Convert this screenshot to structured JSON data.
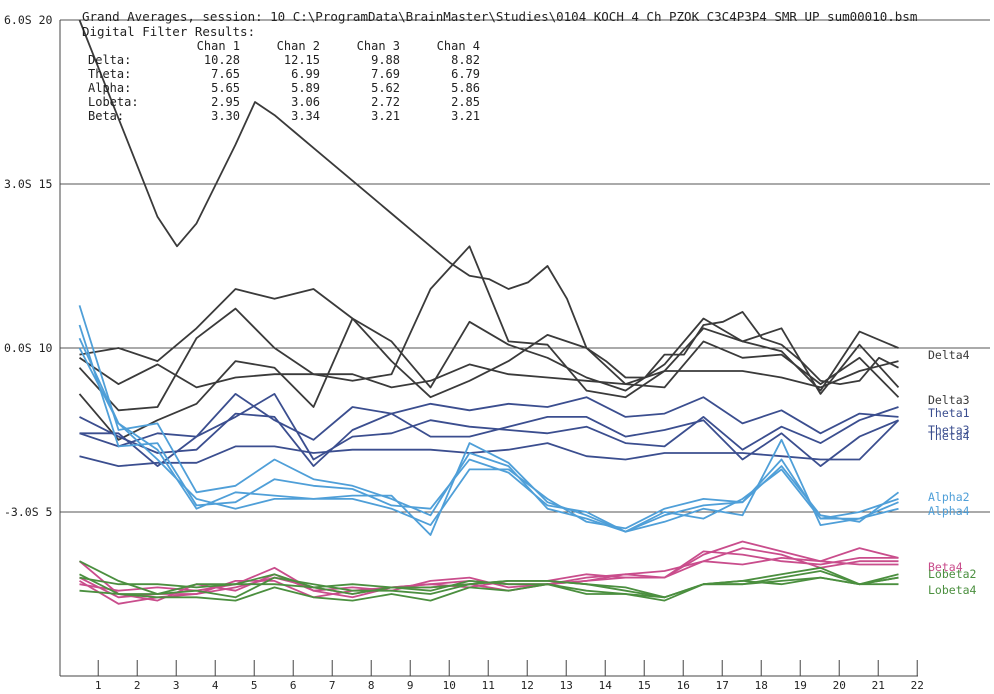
{
  "header": {
    "title": "Grand Averages, session: 10 C:\\ProgramData\\BrainMaster\\Studies\\0104 KOCH 4 Ch PZOK C3C4P3P4 SMR UP sum00010.bsm",
    "subtitle": "Digital Filter Results:"
  },
  "chart_data": {
    "type": "line",
    "title": "Grand Averages, session: 10 C:\\ProgramData\\BrainMaster\\Studies\\0104 KOCH 4 Ch PZOK C3C4P3P4 SMR UP sum00010.bsm",
    "subtitle": "Digital Filter Results:",
    "xlabel": "",
    "ylabel": "",
    "ylim": [
      0,
      20
    ],
    "xlim": [
      0,
      22
    ],
    "grid": true,
    "y_ticks": [
      {
        "value": 20,
        "label": "6.0S 20"
      },
      {
        "value": 15,
        "label": "3.0S 15"
      },
      {
        "value": 10,
        "label": "0.0S 10"
      },
      {
        "value": 5,
        "label": "-3.0S 5"
      }
    ],
    "x_ticks": [
      "1",
      "2",
      "3",
      "4",
      "5",
      "6",
      "7",
      "8",
      "9",
      "10",
      "11",
      "12",
      "13",
      "14",
      "15",
      "16",
      "17",
      "18",
      "19",
      "20",
      "21",
      "22"
    ],
    "summary_table": {
      "columns": [
        "",
        "Chan 1",
        "Chan 2",
        "Chan 3",
        "Chan 4"
      ],
      "rows": [
        [
          "Delta:",
          "10.28",
          "12.15",
          "9.88",
          "8.82"
        ],
        [
          "Theta:",
          "7.65",
          "6.99",
          "7.69",
          "6.79"
        ],
        [
          "Alpha:",
          "5.65",
          "5.89",
          "5.62",
          "5.86"
        ],
        [
          "Lobeta:",
          "2.95",
          "3.06",
          "2.72",
          "2.85"
        ],
        [
          "Beta:",
          "3.30",
          "3.34",
          "3.21",
          "3.21"
        ]
      ]
    },
    "series": [
      {
        "group": "Delta",
        "label": "",
        "color": "#3a3a3a",
        "x": [
          0.5,
          1,
          1.5,
          2,
          2.5,
          3,
          3.5,
          4,
          4.5,
          5,
          5.5,
          6,
          6.5,
          7,
          7.5,
          8,
          8.5,
          9,
          9.5,
          10,
          10.5,
          11,
          11.5,
          12,
          12.5,
          13,
          13.5,
          14,
          14.5,
          15,
          15.5,
          16,
          16.5,
          17,
          17.5,
          18,
          18.5,
          19,
          19.5,
          20,
          20.5,
          21,
          21.5
        ],
        "values": [
          20,
          18.5,
          17,
          15.5,
          14,
          13.1,
          13.8,
          15,
          16.2,
          17.5,
          17.1,
          16.6,
          16.1,
          15.6,
          15.1,
          14.6,
          14.1,
          13.6,
          13.1,
          12.6,
          12.2,
          12.1,
          11.8,
          12,
          12.5,
          11.5,
          10,
          9.6,
          9.1,
          9.1,
          9.8,
          9.8,
          10.7,
          10.8,
          11.1,
          10.3,
          10.1,
          9.6,
          9.0,
          8.9,
          9.0,
          9.7,
          9.4
        ]
      },
      {
        "group": "Delta",
        "label": "",
        "color": "#3a3a3a",
        "x": [
          0.5,
          1.5,
          2.5,
          3.5,
          4.5,
          5.5,
          6.5,
          7.5,
          8.5,
          9.5,
          10.5,
          11.5,
          12.5,
          13.5,
          14.5,
          15.5,
          16.5,
          17.5,
          18.5,
          19.5,
          20.5,
          21.5
        ],
        "values": [
          9.8,
          10.0,
          9.6,
          10.6,
          11.8,
          11.5,
          11.8,
          10.9,
          10.2,
          8.8,
          10.8,
          10.1,
          9.7,
          9.1,
          8.7,
          9.5,
          10.9,
          10.2,
          10.6,
          8.6,
          10.1,
          8.8
        ]
      },
      {
        "group": "Delta",
        "label": "Delta4",
        "color": "#3a3a3a",
        "x": [
          0.5,
          1.5,
          2.5,
          3.5,
          4.5,
          5.5,
          6.5,
          7.5,
          8.5,
          9.5,
          10.5,
          11.5,
          12.5,
          13.5,
          14.5,
          15.5,
          16.5,
          17.5,
          18.5,
          19.5,
          20.5,
          21.5
        ],
        "values": [
          9.4,
          8.1,
          8.2,
          10.3,
          11.2,
          10.0,
          9.2,
          9.0,
          9.2,
          11.8,
          13.1,
          10.2,
          10.1,
          8.7,
          8.5,
          9.3,
          10.6,
          10.2,
          9.9,
          8.7,
          10.5,
          10.0
        ]
      },
      {
        "group": "Delta",
        "label": "Delta3",
        "color": "#3a3a3a",
        "x": [
          0.5,
          1.5,
          2.5,
          3.5,
          4.5,
          5.5,
          6.5,
          7.5,
          8.5,
          9.5,
          10.5,
          11.5,
          12.5,
          13.5,
          14.5,
          15.5,
          16.5,
          17.5,
          18.5,
          19.5,
          20.5,
          21.5
        ],
        "values": [
          8.6,
          7.2,
          7.8,
          8.3,
          9.6,
          9.4,
          8.2,
          10.9,
          9.6,
          8.5,
          9.0,
          9.6,
          10.4,
          10.0,
          8.9,
          8.8,
          10.2,
          9.7,
          9.8,
          8.9,
          9.7,
          8.5
        ]
      },
      {
        "group": "Delta",
        "label": "",
        "color": "#3a3a3a",
        "x": [
          0.5,
          1.5,
          2.5,
          3.5,
          4.5,
          5.5,
          6.5,
          7.5,
          8.5,
          9.5,
          10.5,
          11.5,
          12.5,
          13.5,
          14.5,
          15.5,
          16.5,
          17.5,
          18.5,
          19.5,
          20.5,
          21.5
        ],
        "values": [
          9.7,
          8.9,
          9.5,
          8.8,
          9.1,
          9.2,
          9.2,
          9.2,
          8.8,
          9.0,
          9.5,
          9.2,
          9.1,
          9.0,
          8.9,
          9.3,
          9.3,
          9.3,
          9.1,
          8.8,
          9.3,
          9.6
        ]
      },
      {
        "group": "Theta",
        "label": "Theta1",
        "color": "#3b4e8f",
        "x": [
          0.5,
          1.5,
          2.5,
          3.5,
          4.5,
          5.5,
          6.5,
          7.5,
          8.5,
          9.5,
          10.5,
          11.5,
          12.5,
          13.5,
          14.5,
          15.5,
          16.5,
          17.5,
          18.5,
          19.5,
          20.5,
          21.5
        ],
        "values": [
          7.4,
          7.4,
          6.4,
          7.3,
          8.6,
          7.8,
          7.2,
          8.2,
          8.0,
          8.3,
          8.1,
          8.3,
          8.2,
          8.5,
          7.9,
          8.0,
          8.5,
          7.7,
          8.1,
          7.4,
          8.0,
          7.9
        ]
      },
      {
        "group": "Theta",
        "label": "",
        "color": "#3b4e8f",
        "x": [
          0.5,
          1.5,
          2.5,
          3.5,
          4.5,
          5.5,
          6.5,
          7.5,
          8.5,
          9.5,
          10.5,
          11.5,
          12.5,
          13.5,
          14.5,
          15.5,
          16.5,
          17.5,
          18.5,
          19.5,
          20.5,
          21.5
        ],
        "values": [
          7.4,
          7.0,
          7.4,
          7.3,
          7.9,
          8.6,
          6.6,
          7.3,
          7.4,
          7.8,
          7.6,
          7.5,
          7.4,
          7.6,
          7.1,
          7.0,
          7.9,
          6.9,
          7.6,
          7.1,
          7.8,
          8.2
        ]
      },
      {
        "group": "Theta",
        "label": "Theta3",
        "color": "#3b4e8f",
        "x": [
          0.5,
          1.5,
          2.5,
          3.5,
          4.5,
          5.5,
          6.5,
          7.5,
          8.5,
          9.5,
          10.5,
          11.5,
          12.5,
          13.5,
          14.5,
          15.5,
          16.5,
          17.5,
          18.5,
          19.5,
          20.5,
          21.5
        ],
        "values": [
          7.9,
          7.3,
          6.8,
          6.9,
          8.0,
          7.9,
          6.4,
          7.5,
          8.0,
          7.3,
          7.3,
          7.6,
          7.9,
          7.9,
          7.3,
          7.5,
          7.8,
          6.6,
          7.4,
          6.4,
          7.3,
          7.8
        ]
      },
      {
        "group": "Theta",
        "label": "Theta4",
        "color": "#3b4e8f",
        "x": [
          0.5,
          1.5,
          2.5,
          3.5,
          4.5,
          5.5,
          6.5,
          7.5,
          8.5,
          9.5,
          10.5,
          11.5,
          12.5,
          13.5,
          14.5,
          15.5,
          16.5,
          17.5,
          18.5,
          19.5,
          20.5,
          21.5
        ],
        "values": [
          6.7,
          6.4,
          6.5,
          6.5,
          7.0,
          7.0,
          6.8,
          6.9,
          6.9,
          6.9,
          6.8,
          6.9,
          7.1,
          6.7,
          6.6,
          6.8,
          6.8,
          6.8,
          6.7,
          6.6,
          6.6,
          7.8
        ]
      },
      {
        "group": "Alpha",
        "label": "",
        "color": "#4f9fd8",
        "x": [
          0.5,
          1.5,
          2.5,
          3.5,
          4.5,
          5.5,
          6.5,
          7.5,
          8.5,
          9.5,
          10.5,
          11.5,
          12.5,
          13.5,
          14.5,
          15.5,
          16.5,
          17.5,
          18.5,
          19.5,
          20.5,
          21.5
        ],
        "values": [
          11.3,
          7.5,
          7.7,
          5.6,
          5.8,
          6.6,
          6.0,
          5.8,
          5.4,
          4.9,
          6.8,
          6.4,
          5.1,
          4.8,
          4.4,
          4.7,
          5.1,
          4.9,
          7.2,
          4.6,
          4.8,
          5.1
        ]
      },
      {
        "group": "Alpha",
        "label": "Alpha2",
        "color": "#4f9fd8",
        "x": [
          0.5,
          1.5,
          2.5,
          3.5,
          4.5,
          5.5,
          6.5,
          7.5,
          8.5,
          9.5,
          10.5,
          11.5,
          12.5,
          13.5,
          14.5,
          15.5,
          16.5,
          17.5,
          18.5,
          19.5,
          20.5,
          21.5
        ],
        "values": [
          10.7,
          7.0,
          7.1,
          5.2,
          5.3,
          6.0,
          5.8,
          5.7,
          5.2,
          5.1,
          6.6,
          6.2,
          5.2,
          5.0,
          4.4,
          4.9,
          5.2,
          5.3,
          6.4,
          4.9,
          4.7,
          5.6
        ]
      },
      {
        "group": "Alpha",
        "label": "Alpha4",
        "color": "#4f9fd8",
        "x": [
          0.5,
          1.5,
          2.5,
          3.5,
          4.5,
          5.5,
          6.5,
          7.5,
          8.5,
          9.5,
          10.5,
          11.5,
          12.5,
          13.5,
          14.5,
          15.5,
          16.5,
          17.5,
          18.5,
          19.5,
          20.5,
          21.5
        ],
        "values": [
          10.0,
          7.7,
          6.6,
          5.4,
          5.1,
          5.4,
          5.4,
          5.4,
          5.1,
          4.6,
          6.3,
          6.3,
          5.4,
          4.7,
          4.5,
          5.1,
          5.4,
          5.3,
          6.6,
          4.8,
          4.8,
          5.3
        ]
      },
      {
        "group": "Alpha",
        "label": "",
        "color": "#4f9fd8",
        "x": [
          0.5,
          1.5,
          2.5,
          3.5,
          4.5,
          5.5,
          6.5,
          7.5,
          8.5,
          9.5,
          10.5,
          11.5,
          12.5,
          13.5,
          14.5,
          15.5,
          16.5,
          17.5,
          18.5,
          19.5,
          20.5,
          21.5
        ],
        "values": [
          10.3,
          7.7,
          6.9,
          5.1,
          5.6,
          5.5,
          5.4,
          5.5,
          5.5,
          4.3,
          7.1,
          6.5,
          5.3,
          4.9,
          4.4,
          5.0,
          4.8,
          5.4,
          6.3,
          4.8,
          5.0,
          5.4
        ]
      },
      {
        "group": "Beta",
        "label": "Beta4",
        "color": "#c94d8c",
        "x": [
          0.5,
          1.5,
          2.5,
          3.5,
          4.5,
          5.5,
          6.5,
          7.5,
          8.5,
          9.5,
          10.5,
          11.5,
          12.5,
          13.5,
          14.5,
          15.5,
          16.5,
          17.5,
          18.5,
          19.5,
          20.5,
          21.5
        ],
        "values": [
          3.5,
          2.5,
          2.3,
          2.8,
          2.6,
          3.1,
          2.6,
          2.4,
          2.7,
          2.7,
          2.8,
          2.6,
          2.8,
          2.9,
          3.1,
          3.2,
          3.5,
          3.9,
          3.7,
          3.3,
          3.5,
          3.5
        ]
      },
      {
        "group": "Beta",
        "label": "",
        "color": "#c94d8c",
        "x": [
          0.5,
          1.5,
          2.5,
          3.5,
          4.5,
          5.5,
          6.5,
          7.5,
          8.5,
          9.5,
          10.5,
          11.5,
          12.5,
          13.5,
          14.5,
          15.5,
          16.5,
          17.5,
          18.5,
          19.5,
          20.5,
          21.5
        ],
        "values": [
          2.9,
          2.2,
          2.4,
          2.5,
          2.9,
          2.9,
          2.4,
          2.6,
          2.7,
          2.8,
          2.7,
          2.9,
          2.9,
          3.1,
          3.0,
          3.0,
          3.7,
          4.1,
          3.8,
          3.5,
          3.9,
          3.6
        ]
      },
      {
        "group": "Beta",
        "label": "",
        "color": "#c94d8c",
        "x": [
          0.5,
          1.5,
          2.5,
          3.5,
          4.5,
          5.5,
          6.5,
          7.5,
          8.5,
          9.5,
          10.5,
          11.5,
          12.5,
          13.5,
          14.5,
          15.5,
          16.5,
          17.5,
          18.5,
          19.5,
          20.5,
          21.5
        ],
        "values": [
          2.8,
          2.6,
          2.7,
          2.6,
          2.8,
          3.3,
          2.6,
          2.7,
          2.6,
          2.9,
          3.0,
          2.7,
          2.8,
          3.0,
          3.1,
          3.0,
          3.8,
          3.7,
          3.5,
          3.4,
          3.6,
          3.6
        ]
      },
      {
        "group": "Beta",
        "label": "",
        "color": "#c94d8c",
        "x": [
          0.5,
          1.5,
          2.5,
          3.5,
          4.5,
          5.5,
          6.5,
          7.5,
          8.5,
          9.5,
          10.5,
          11.5,
          12.5,
          13.5,
          14.5,
          15.5,
          16.5,
          17.5,
          18.5,
          19.5,
          20.5,
          21.5
        ],
        "values": [
          3.0,
          2.4,
          2.5,
          2.5,
          2.7,
          3.0,
          2.7,
          2.5,
          2.7,
          2.8,
          2.9,
          2.8,
          2.8,
          2.9,
          3.0,
          3.0,
          3.5,
          3.4,
          3.6,
          3.5,
          3.4,
          3.4
        ]
      },
      {
        "group": "Lobeta",
        "label": "",
        "color": "#4b8f3f",
        "x": [
          0.5,
          1.5,
          2.5,
          3.5,
          4.5,
          5.5,
          6.5,
          7.5,
          8.5,
          9.5,
          10.5,
          11.5,
          12.5,
          13.5,
          14.5,
          15.5,
          16.5,
          17.5,
          18.5,
          19.5,
          20.5,
          21.5
        ],
        "values": [
          3.0,
          2.8,
          2.8,
          2.7,
          2.8,
          3.1,
          2.7,
          2.5,
          2.7,
          2.6,
          2.9,
          2.8,
          2.8,
          2.6,
          2.5,
          2.3,
          2.8,
          2.9,
          3.1,
          3.3,
          2.8,
          3.0
        ]
      },
      {
        "group": "Lobeta",
        "label": "Lobeta2",
        "color": "#4b8f3f",
        "x": [
          0.5,
          1.5,
          2.5,
          3.5,
          4.5,
          5.5,
          6.5,
          7.5,
          8.5,
          9.5,
          10.5,
          11.5,
          12.5,
          13.5,
          14.5,
          15.5,
          16.5,
          17.5,
          18.5,
          19.5,
          20.5,
          21.5
        ],
        "values": [
          3.5,
          2.9,
          2.5,
          2.6,
          2.4,
          3.0,
          2.8,
          2.6,
          2.6,
          2.5,
          2.8,
          2.9,
          2.9,
          2.8,
          2.7,
          2.4,
          2.8,
          2.8,
          3.0,
          3.2,
          2.8,
          3.1
        ]
      },
      {
        "group": "Lobeta",
        "label": "Lobeta4",
        "color": "#4b8f3f",
        "x": [
          0.5,
          1.5,
          2.5,
          3.5,
          4.5,
          5.5,
          6.5,
          7.5,
          8.5,
          9.5,
          10.5,
          11.5,
          12.5,
          13.5,
          14.5,
          15.5,
          16.5,
          17.5,
          18.5,
          19.5,
          20.5,
          21.5
        ],
        "values": [
          2.6,
          2.5,
          2.4,
          2.4,
          2.3,
          2.7,
          2.4,
          2.3,
          2.5,
          2.3,
          2.7,
          2.6,
          2.8,
          2.5,
          2.5,
          2.4,
          2.8,
          2.8,
          2.9,
          3.0,
          2.8,
          2.8
        ]
      },
      {
        "group": "Lobeta",
        "label": "",
        "color": "#4b8f3f",
        "x": [
          0.5,
          1.5,
          2.5,
          3.5,
          4.5,
          5.5,
          6.5,
          7.5,
          8.5,
          9.5,
          10.5,
          11.5,
          12.5,
          13.5,
          14.5,
          15.5,
          16.5,
          17.5,
          18.5,
          19.5,
          20.5,
          21.5
        ],
        "values": [
          3.1,
          2.5,
          2.5,
          2.8,
          2.8,
          2.8,
          2.7,
          2.8,
          2.7,
          2.7,
          2.8,
          2.9,
          2.9,
          2.8,
          2.6,
          2.4,
          2.8,
          2.9,
          2.8,
          3.0,
          2.8,
          3.0
        ]
      }
    ]
  }
}
